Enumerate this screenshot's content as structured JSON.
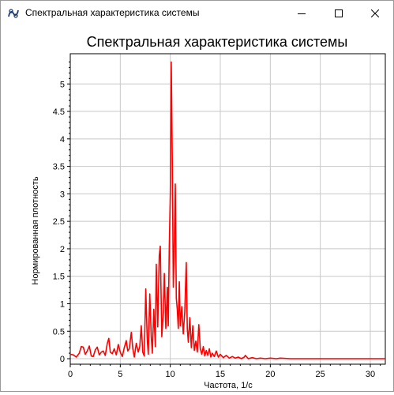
{
  "window": {
    "title": "Спектральная характеристика системы",
    "icon": "app-logo-icon",
    "controls": {
      "minimize": "minimize-icon",
      "maximize": "maximize-icon",
      "close": "close-icon"
    }
  },
  "chart_data": {
    "type": "line",
    "title": "Спектральная характеристика системы",
    "xlabel": "Частота, 1/с",
    "ylabel": "Нормированная плотность",
    "xlim": [
      0,
      31.5
    ],
    "ylim": [
      -0.1,
      5.55
    ],
    "xticks": [
      "0",
      "5",
      "10",
      "15",
      "20",
      "25",
      "30"
    ],
    "yticks": [
      "0",
      "0.5",
      "1",
      "1.5",
      "2",
      "2.5",
      "3",
      "3.5",
      "4",
      "4.5",
      "5"
    ],
    "grid": true,
    "color": "#ff0000",
    "series": [
      {
        "name": "",
        "points": [
          [
            0.0,
            0.08
          ],
          [
            0.3,
            0.07
          ],
          [
            0.6,
            0.03
          ],
          [
            0.9,
            0.1
          ],
          [
            1.1,
            0.22
          ],
          [
            1.3,
            0.21
          ],
          [
            1.5,
            0.08
          ],
          [
            1.7,
            0.14
          ],
          [
            1.9,
            0.23
          ],
          [
            2.1,
            0.05
          ],
          [
            2.3,
            0.04
          ],
          [
            2.5,
            0.16
          ],
          [
            2.7,
            0.21
          ],
          [
            2.9,
            0.07
          ],
          [
            3.1,
            0.12
          ],
          [
            3.3,
            0.14
          ],
          [
            3.5,
            0.06
          ],
          [
            3.7,
            0.28
          ],
          [
            3.85,
            0.37
          ],
          [
            4.0,
            0.12
          ],
          [
            4.2,
            0.09
          ],
          [
            4.4,
            0.18
          ],
          [
            4.6,
            0.07
          ],
          [
            4.8,
            0.26
          ],
          [
            5.0,
            0.12
          ],
          [
            5.2,
            0.04
          ],
          [
            5.4,
            0.2
          ],
          [
            5.6,
            0.33
          ],
          [
            5.75,
            0.14
          ],
          [
            5.9,
            0.18
          ],
          [
            6.1,
            0.48
          ],
          [
            6.25,
            0.18
          ],
          [
            6.4,
            0.03
          ],
          [
            6.6,
            0.28
          ],
          [
            6.8,
            0.12
          ],
          [
            6.95,
            0.22
          ],
          [
            7.1,
            0.6
          ],
          [
            7.25,
            0.12
          ],
          [
            7.4,
            0.05
          ],
          [
            7.55,
            1.27
          ],
          [
            7.7,
            0.35
          ],
          [
            7.8,
            0.08
          ],
          [
            7.95,
            1.18
          ],
          [
            8.1,
            0.4
          ],
          [
            8.2,
            0.1
          ],
          [
            8.35,
            0.9
          ],
          [
            8.5,
            0.22
          ],
          [
            8.6,
            1.72
          ],
          [
            8.75,
            0.58
          ],
          [
            8.9,
            1.88
          ],
          [
            9.0,
            2.05
          ],
          [
            9.15,
            0.4
          ],
          [
            9.3,
            0.85
          ],
          [
            9.4,
            1.55
          ],
          [
            9.55,
            0.55
          ],
          [
            9.7,
            1.3
          ],
          [
            9.8,
            0.6
          ],
          [
            9.9,
            2.05
          ],
          [
            10.0,
            3.0
          ],
          [
            10.1,
            5.4
          ],
          [
            10.2,
            3.6
          ],
          [
            10.3,
            1.3
          ],
          [
            10.4,
            2.05
          ],
          [
            10.5,
            3.18
          ],
          [
            10.6,
            1.1
          ],
          [
            10.7,
            0.9
          ],
          [
            10.8,
            0.55
          ],
          [
            10.9,
            1.4
          ],
          [
            11.0,
            0.6
          ],
          [
            11.15,
            0.95
          ],
          [
            11.3,
            0.45
          ],
          [
            11.45,
            0.85
          ],
          [
            11.6,
            1.75
          ],
          [
            11.7,
            0.55
          ],
          [
            11.8,
            0.3
          ],
          [
            11.95,
            0.75
          ],
          [
            12.1,
            0.2
          ],
          [
            12.25,
            0.6
          ],
          [
            12.4,
            0.15
          ],
          [
            12.55,
            0.32
          ],
          [
            12.7,
            0.12
          ],
          [
            12.85,
            0.62
          ],
          [
            13.0,
            0.18
          ],
          [
            13.15,
            0.08
          ],
          [
            13.3,
            0.22
          ],
          [
            13.45,
            0.05
          ],
          [
            13.6,
            0.15
          ],
          [
            13.75,
            0.06
          ],
          [
            13.9,
            0.18
          ],
          [
            14.05,
            0.03
          ],
          [
            14.2,
            0.1
          ],
          [
            14.4,
            0.04
          ],
          [
            14.6,
            0.14
          ],
          [
            14.8,
            0.03
          ],
          [
            15.0,
            0.08
          ],
          [
            15.3,
            0.02
          ],
          [
            15.6,
            0.06
          ],
          [
            15.9,
            0.01
          ],
          [
            16.2,
            0.04
          ],
          [
            16.5,
            0.01
          ],
          [
            16.8,
            0.03
          ],
          [
            17.1,
            0.0
          ],
          [
            17.4,
            0.03
          ],
          [
            17.5,
            0.06
          ],
          [
            17.8,
            0.0
          ],
          [
            18.2,
            0.02
          ],
          [
            18.6,
            0.0
          ],
          [
            19.0,
            0.01
          ],
          [
            19.5,
            0.0
          ],
          [
            20.0,
            0.01
          ],
          [
            20.6,
            0.0
          ],
          [
            21.0,
            0.01
          ],
          [
            22.0,
            0.0
          ],
          [
            23.0,
            0.0
          ],
          [
            25.0,
            0.0
          ],
          [
            27.0,
            0.0
          ],
          [
            29.0,
            0.0
          ],
          [
            31.5,
            0.0
          ]
        ]
      }
    ]
  }
}
